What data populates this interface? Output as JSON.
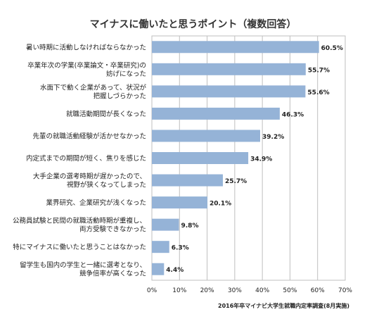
{
  "chart_data": {
    "type": "bar",
    "orientation": "horizontal",
    "title": "マイナスに働いたと思うポイント（複数回答）",
    "source": "2016年卒マイナビ大学生就職内定率調査(8月実施)",
    "categories": [
      [
        "暑い時期に活動しなければならなかった"
      ],
      [
        "卒業年次の学業(卒業論文・卒業研究)の",
        "妨げになった"
      ],
      [
        "水面下で動く企業があって、状況が",
        "把握しづらかった"
      ],
      [
        "就職活動期間が長くなった"
      ],
      [
        "先輩の就職活動経験が活かせなかった"
      ],
      [
        "内定式までの期間が短く、焦りを感じた"
      ],
      [
        "大手企業の選考時期が遅かったので、",
        "視野が狭くなってしまった"
      ],
      [
        "業界研究、企業研究が浅くなった"
      ],
      [
        "公務員試験と民間の就職活動時期が重複し、",
        "両方受験できなかった"
      ],
      [
        "特にマイナスに働いたと思うことはなかった"
      ],
      [
        "留学生も国内の学生と一緒に選考となり、",
        "競争倍率が高くなった"
      ]
    ],
    "values": [
      60.5,
      55.7,
      55.6,
      46.3,
      39.2,
      34.9,
      25.7,
      20.1,
      9.8,
      6.3,
      4.4
    ],
    "value_labels": [
      "60.5%",
      "55.7%",
      "55.6%",
      "46.3%",
      "39.2%",
      "34.9%",
      "25.7%",
      "20.1%",
      "9.8%",
      "6.3%",
      "4.4%"
    ],
    "xlim": [
      0,
      70
    ],
    "ticks": [
      0,
      10,
      20,
      30,
      40,
      50,
      60,
      70
    ],
    "tick_labels": [
      "0%",
      "10%",
      "20%",
      "30%",
      "40%",
      "50%",
      "60%",
      "70%"
    ],
    "grid": true,
    "bar_color": "#95b3d7",
    "grid_color": "#bfbfbf"
  }
}
